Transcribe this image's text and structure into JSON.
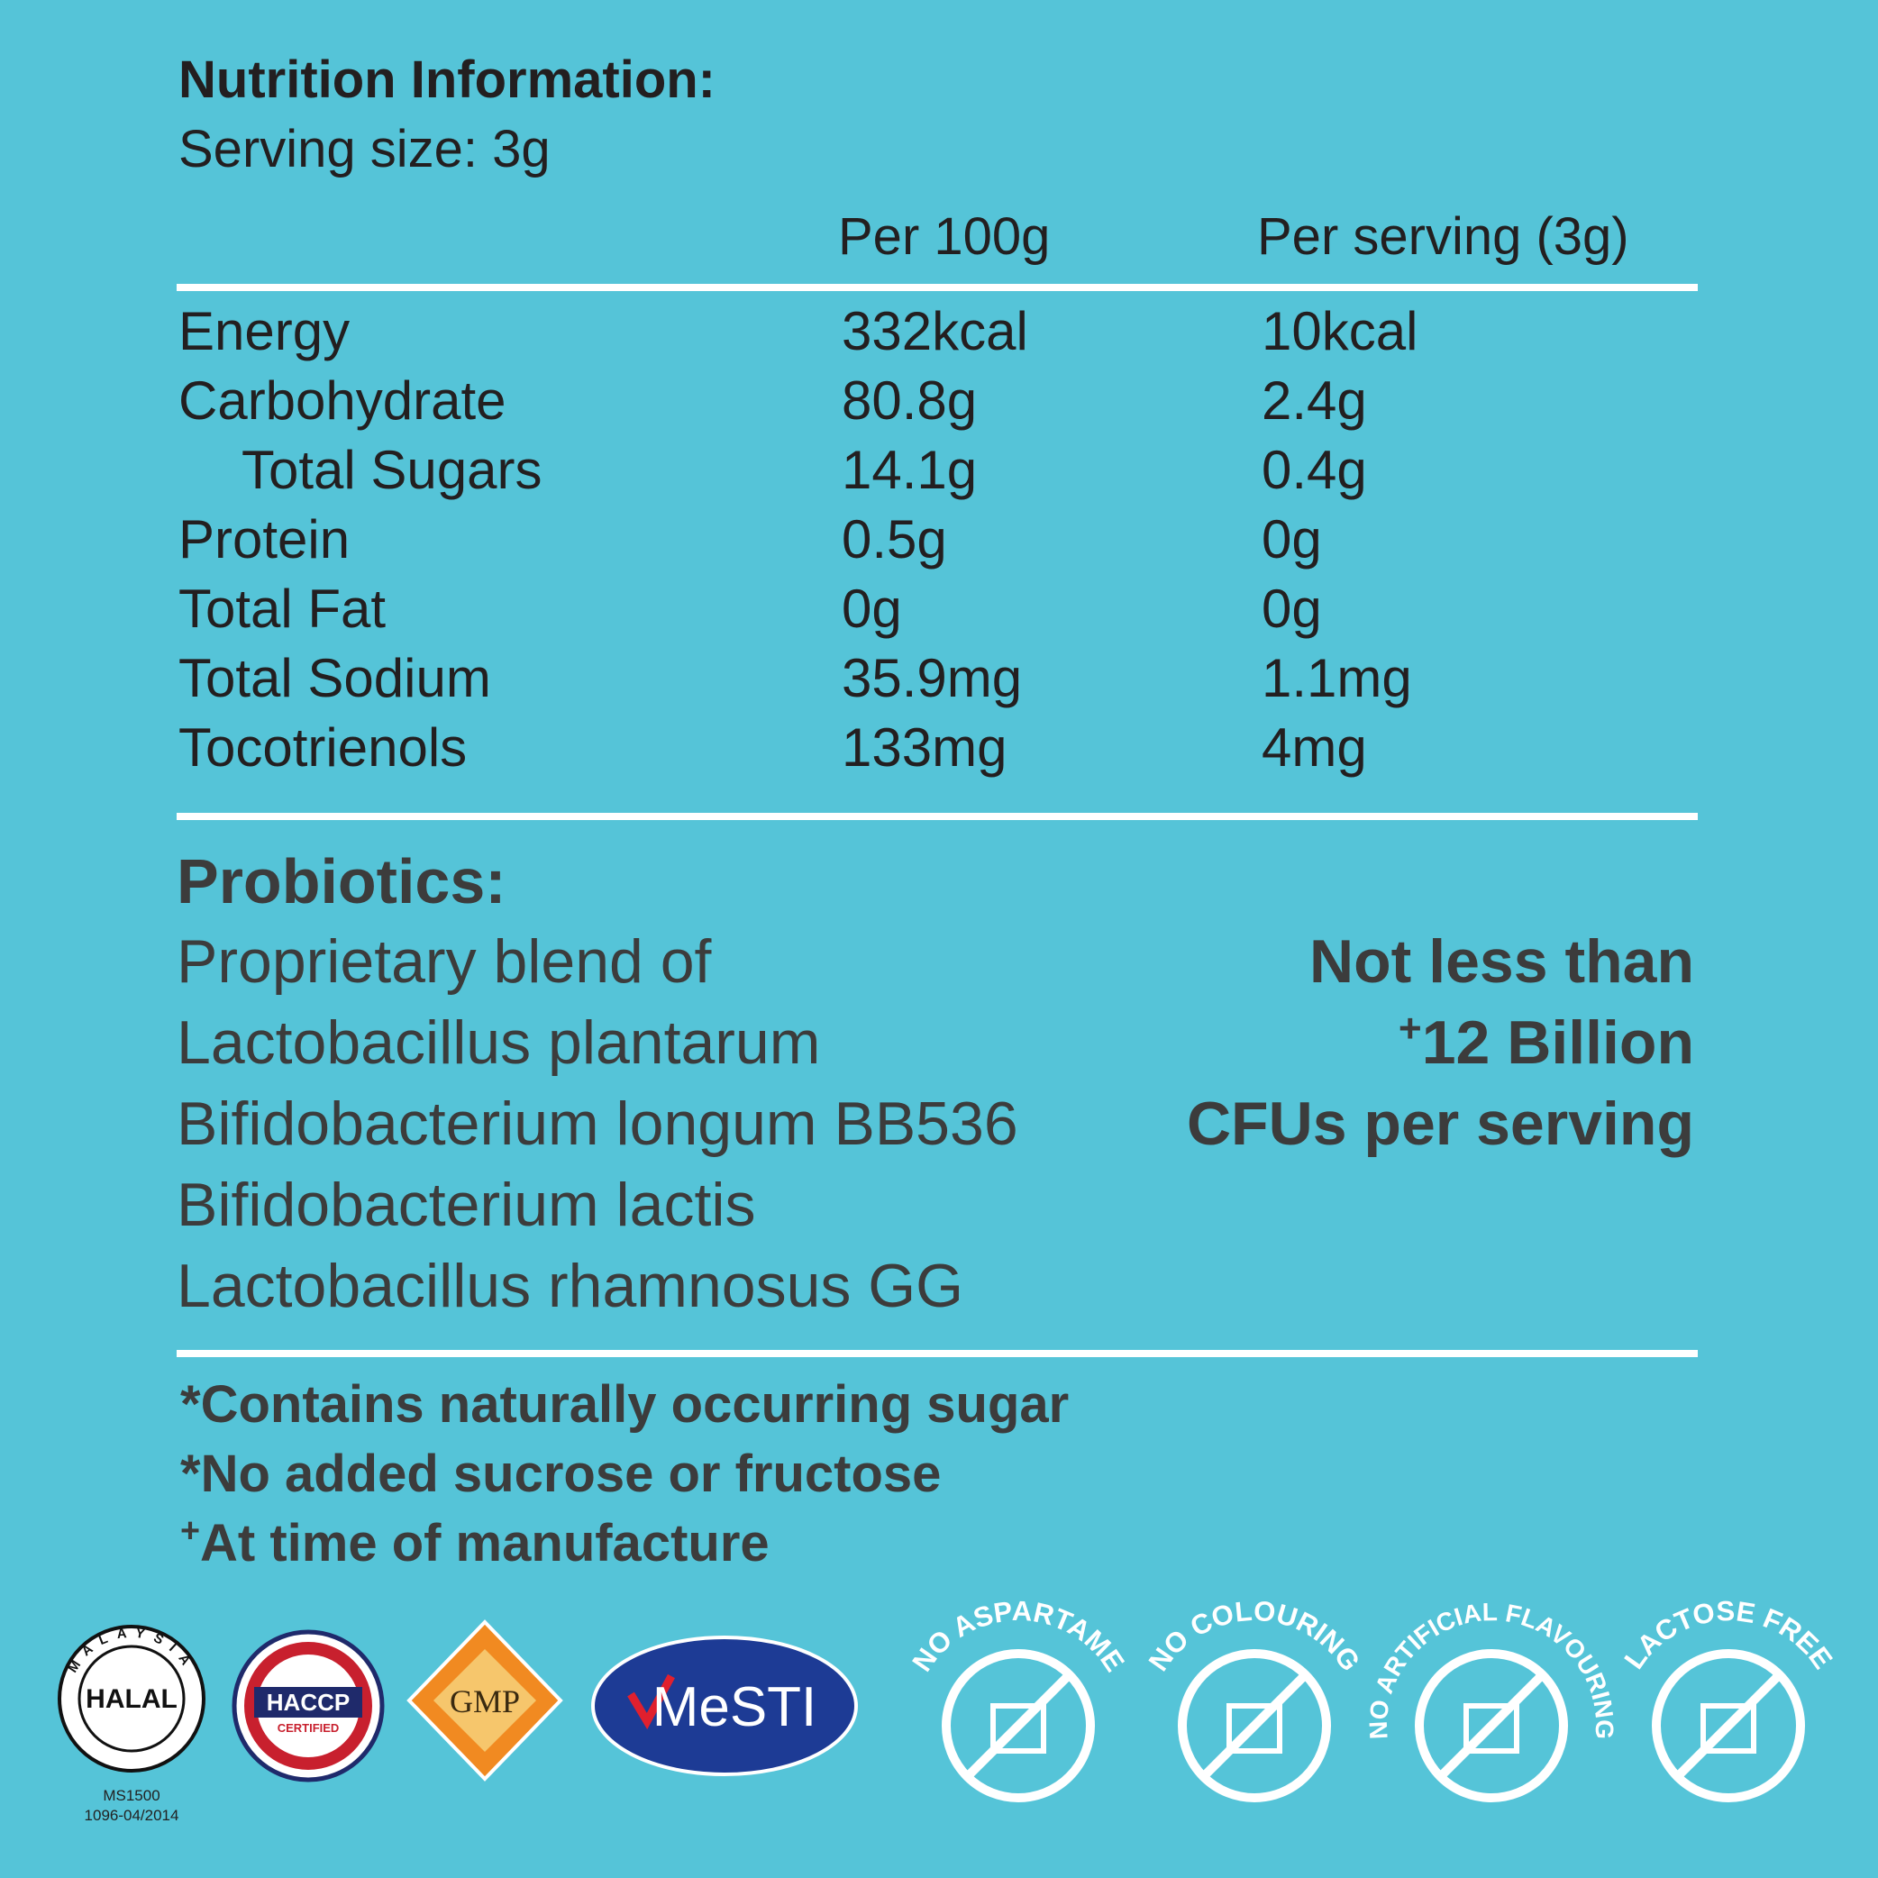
{
  "header": {
    "title": "Nutrition Information:",
    "serving": "Serving size: 3g"
  },
  "table": {
    "columns": [
      "Per 100g",
      "Per serving (3g)"
    ],
    "rows": [
      [
        "Energy",
        "332kcal",
        "10kcal"
      ],
      [
        "Carbohydrate",
        "80.8g",
        "2.4g"
      ],
      [
        "Total Sugars",
        "14.1g",
        "0.4g"
      ],
      [
        "Protein",
        "0.5g",
        "0g"
      ],
      [
        "Total Fat",
        "0g",
        "0g"
      ],
      [
        "Total Sodium",
        "35.9mg",
        "1.1mg"
      ],
      [
        "Tocotrienols",
        "133mg",
        "4mg"
      ]
    ]
  },
  "probiotics": {
    "title": "Probiotics:",
    "strains": [
      "Proprietary blend of",
      "Lactobacillus plantarum",
      "Bifidobacterium longum BB536",
      "Bifidobacterium lactis",
      "Lactobacillus rhamnosus GG"
    ],
    "claim": [
      {
        "text": "Not less than"
      },
      {
        "mark": "+",
        "text": "12 Billion"
      },
      {
        "text": "CFUs per serving"
      }
    ]
  },
  "notes": [
    {
      "text": "*Contains naturally occurring sugar"
    },
    {
      "text": "*No added sucrose or fructose"
    },
    {
      "mark": "+",
      "text": "At time of manufacture"
    }
  ],
  "logos": {
    "halal": {
      "ring": "MALAYSIA",
      "word": "HALAL",
      "code": "MS1500",
      "cert": "1096-04/2014"
    },
    "haccp": {
      "name": "HACCP",
      "sub": "CERTIFIED"
    },
    "gmp": {
      "name": "GMP"
    },
    "mesti": {
      "name": "MeSTI"
    }
  },
  "icons": [
    "NO ASPARTAME",
    "NO COLOURING",
    "NO ARTIFICIAL FLAVOURING",
    "LACTOSE FREE"
  ]
}
